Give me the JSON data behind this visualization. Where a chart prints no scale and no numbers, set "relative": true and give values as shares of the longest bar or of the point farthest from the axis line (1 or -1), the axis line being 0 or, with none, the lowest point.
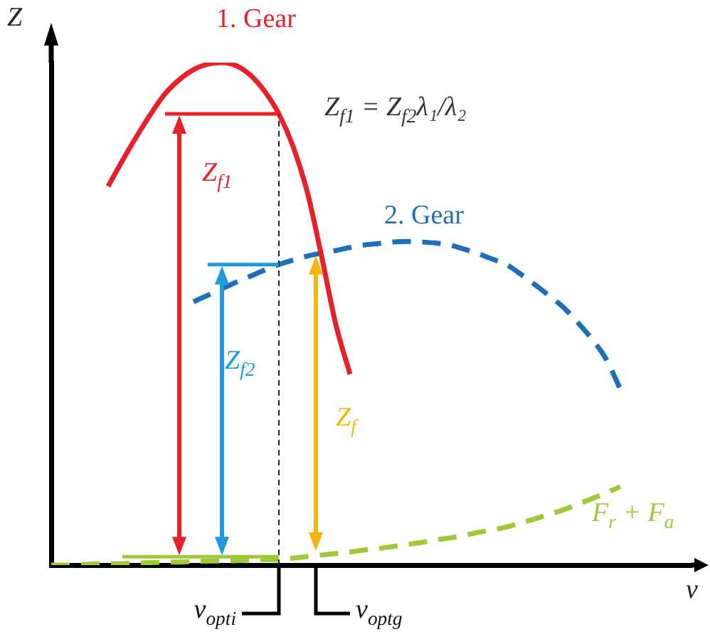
{
  "chart_data": {
    "type": "line",
    "relative": true,
    "xlabel": "v",
    "ylabel": "Z",
    "tick_labels": false,
    "grid": false,
    "legend": false,
    "marker": "none",
    "categories": [
      null,
      null,
      null,
      null,
      null,
      null,
      null,
      null,
      null,
      null,
      null,
      null,
      null,
      null,
      null,
      null,
      null,
      null,
      null,
      null,
      null,
      null,
      null,
      null,
      null,
      null,
      null,
      null,
      null,
      null,
      null,
      null,
      null,
      null,
      null,
      null,
      null,
      null,
      null,
      null,
      null,
      null,
      null,
      null,
      null,
      null
    ],
    "series": [
      {
        "name": "1. Gear",
        "color": "#e8202a",
        "line_style": "solid",
        "values": [
          null,
          null,
          null,
          null,
          0.754,
          0.805,
          0.853,
          0.898,
          0.938,
          0.966,
          0.986,
          0.997,
          1,
          0.994,
          0.975,
          0.943,
          0.898,
          0.833,
          0.742,
          0.615,
          0.479,
          0.38,
          null,
          null,
          null,
          null,
          null,
          null,
          null,
          null,
          null,
          null,
          null,
          null,
          null,
          null,
          null,
          null,
          null,
          null,
          null,
          null,
          null,
          null,
          null,
          null
        ]
      },
      {
        "name": "2. Gear",
        "color": "#1f6fb8",
        "line_style": "dashed",
        "values": [
          null,
          null,
          null,
          null,
          null,
          null,
          null,
          null,
          null,
          null,
          0.524,
          0.537,
          0.55,
          0.563,
          0.575,
          0.587,
          0.598,
          0.607,
          0.615,
          0.621,
          0.626,
          0.632,
          0.637,
          0.64,
          0.643,
          0.644,
          0.643,
          0.641,
          0.637,
          0.629,
          0.62,
          0.609,
          0.598,
          0.579,
          0.558,
          0.536,
          0.513,
          0.483,
          0.45,
          0.41,
          0.35,
          null,
          null,
          null,
          null,
          null
        ]
      },
      {
        "name": "F$_{r}$ + F$_{a}$",
        "color": "#9dc93a",
        "line_style": "dashed",
        "values": [
          0,
          0,
          0.001,
          0.002,
          0.003,
          0.003,
          0.004,
          0.005,
          0.006,
          0.006,
          0.007,
          0.008,
          0.008,
          0.009,
          0.01,
          0.011,
          0.011,
          0.014,
          0.017,
          0.02,
          0.023,
          0.026,
          0.03,
          0.033,
          0.037,
          0.041,
          0.045,
          0.05,
          0.054,
          0.059,
          0.065,
          0.07,
          0.076,
          0.084,
          0.092,
          0.101,
          0.11,
          0.121,
          0.132,
          0.144,
          0.156,
          null,
          null,
          null,
          null,
          null
        ]
      }
    ],
    "annotations": [
      "Z$_{f1}$ = Z$_{f2}$λ₁/λ₂",
      "Z$_{f1}$",
      "Z$_{f2}$",
      "Z$_{f}$",
      "v$_{opti}$",
      "v$_{optg}$"
    ]
  }
}
